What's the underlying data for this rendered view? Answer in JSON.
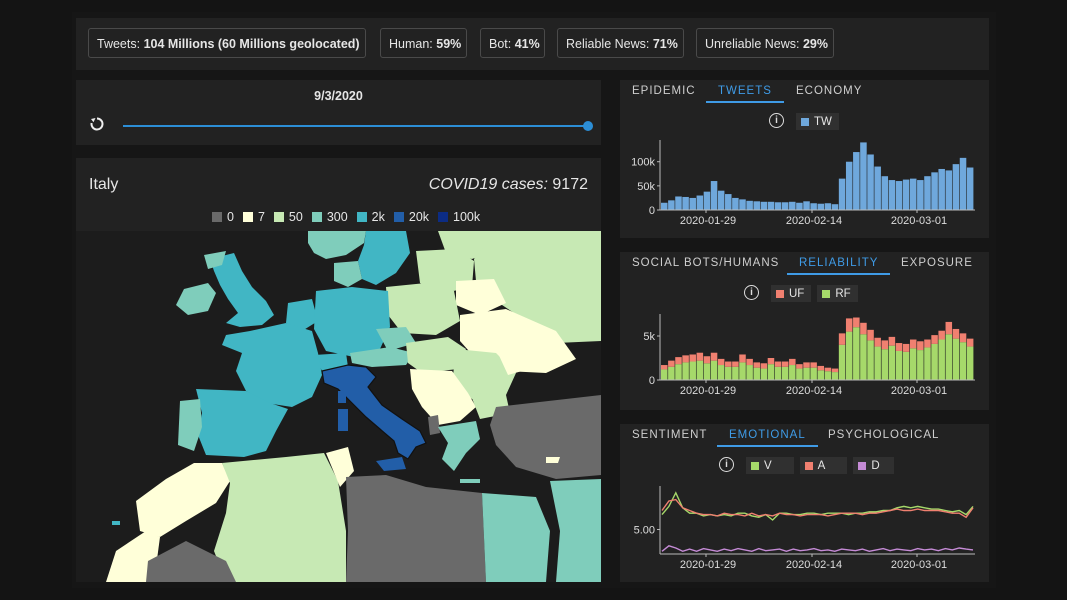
{
  "stats": {
    "tweets_label": "Tweets:",
    "tweets_value": "104 Millions (60 Millions geolocated)",
    "human_label": "Human:",
    "human_value": "59%",
    "bot_label": "Bot:",
    "bot_value": "41%",
    "reliable_label": "Reliable News:",
    "reliable_value": "71%",
    "unreliable_label": "Unreliable News:",
    "unreliable_value": "29%"
  },
  "slider": {
    "date": "9/3/2020",
    "progress": 1.0
  },
  "map": {
    "country": "Italy",
    "cases_label": "COVID19 cases:",
    "cases_value": "9172",
    "legend": [
      {
        "label": "0",
        "color": "#6a6a6a"
      },
      {
        "label": "7",
        "color": "#ffffd9"
      },
      {
        "label": "50",
        "color": "#c7e9b4"
      },
      {
        "label": "300",
        "color": "#7fcdbb"
      },
      {
        "label": "2k",
        "color": "#41b6c4"
      },
      {
        "label": "20k",
        "color": "#225ea8"
      },
      {
        "label": "100k",
        "color": "#0c2c84"
      }
    ]
  },
  "panel1": {
    "tabs": [
      "EPIDEMIC",
      "TWEETS",
      "ECONOMY"
    ],
    "active_tab": 1,
    "legend": [
      {
        "label": "TW",
        "color": "#6fa8dc"
      }
    ]
  },
  "panel2": {
    "tabs": [
      "SOCIAL BOTS/HUMANS",
      "RELIABILITY",
      "EXPOSURE"
    ],
    "active_tab": 1,
    "legend": [
      {
        "label": "UF",
        "color": "#f08070"
      },
      {
        "label": "RF",
        "color": "#a6d96a"
      }
    ]
  },
  "panel3": {
    "tabs": [
      "SENTIMENT",
      "EMOTIONAL",
      "PSYCHOLOGICAL"
    ],
    "active_tab": 1,
    "legend": [
      {
        "label": "V",
        "color": "#a6d96a"
      },
      {
        "label": "A",
        "color": "#f08070"
      },
      {
        "label": "D",
        "color": "#c58bd6"
      }
    ]
  },
  "chart_data": [
    {
      "type": "bar",
      "title": "",
      "series": [
        {
          "name": "TW",
          "values": [
            15000,
            20000,
            28000,
            27000,
            25000,
            30000,
            38000,
            60000,
            40000,
            33000,
            25000,
            22000,
            19000,
            18000,
            17000,
            17000,
            16000,
            16000,
            17000,
            15000,
            18000,
            14000,
            13000,
            14000,
            12000,
            65000,
            100000,
            120000,
            140000,
            115000,
            90000,
            70000,
            62000,
            60000,
            63000,
            65000,
            62000,
            70000,
            78000,
            85000,
            82000,
            95000,
            108000,
            88000
          ]
        }
      ],
      "x_ticks": [
        "2020-01-29",
        "2020-02-14",
        "2020-03-01"
      ],
      "y_ticks": [
        "0",
        "50k",
        "100k"
      ],
      "ylim": [
        0,
        145000
      ]
    },
    {
      "type": "bar",
      "title": "",
      "series": [
        {
          "name": "RF",
          "values": [
            1200,
            1500,
            1800,
            2000,
            2100,
            2200,
            1900,
            2200,
            1700,
            1500,
            1500,
            2000,
            1700,
            1400,
            1300,
            1800,
            1500,
            1500,
            1700,
            1300,
            1400,
            1400,
            1100,
            1000,
            900,
            4000,
            5500,
            6000,
            5200,
            4500,
            3800,
            3500,
            3900,
            3300,
            3200,
            3600,
            3400,
            3700,
            4100,
            4600,
            5200,
            4700,
            4300,
            3800
          ]
        },
        {
          "name": "UF",
          "values": [
            500,
            700,
            800,
            800,
            800,
            900,
            800,
            900,
            700,
            600,
            600,
            900,
            700,
            600,
            600,
            700,
            600,
            600,
            700,
            500,
            600,
            600,
            500,
            400,
            400,
            1300,
            1500,
            1100,
            1300,
            1200,
            1000,
            1000,
            1000,
            900,
            900,
            1000,
            1000,
            900,
            1000,
            1000,
            1400,
            1100,
            1000,
            900
          ]
        }
      ],
      "x_ticks": [
        "2020-01-29",
        "2020-02-14",
        "2020-03-01"
      ],
      "y_ticks": [
        "0",
        "5k"
      ],
      "ylim": [
        0,
        7500
      ]
    },
    {
      "type": "line",
      "title": "",
      "series": [
        {
          "name": "V",
          "values": [
            5.55,
            5.85,
            6.35,
            5.8,
            5.6,
            5.6,
            5.5,
            5.55,
            5.5,
            5.55,
            5.5,
            5.6,
            5.6,
            5.5,
            5.45,
            5.55,
            5.35,
            5.6,
            5.6,
            5.55,
            5.55,
            5.6,
            5.6,
            5.55,
            5.6,
            5.6,
            5.6,
            5.55,
            5.6,
            5.6,
            5.65,
            5.65,
            5.7,
            5.7,
            5.8,
            5.85,
            5.8,
            5.85,
            5.8,
            5.75,
            5.75,
            5.7,
            5.65,
            5.7,
            5.55,
            5.85
          ]
        },
        {
          "name": "A",
          "values": [
            5.7,
            6.05,
            6.1,
            5.8,
            5.7,
            5.6,
            5.55,
            5.55,
            5.5,
            5.6,
            5.55,
            5.55,
            5.5,
            5.6,
            5.5,
            5.55,
            5.5,
            5.6,
            5.55,
            5.55,
            5.5,
            5.55,
            5.55,
            5.55,
            5.5,
            5.55,
            5.6,
            5.6,
            5.6,
            5.55,
            5.6,
            5.6,
            5.65,
            5.7,
            5.75,
            5.7,
            5.7,
            5.75,
            5.7,
            5.7,
            5.7,
            5.65,
            5.6,
            5.6,
            5.45,
            5.8
          ]
        },
        {
          "name": "D",
          "values": [
            4.2,
            4.4,
            4.32,
            4.2,
            4.28,
            4.2,
            4.3,
            4.25,
            4.2,
            4.28,
            4.22,
            4.3,
            4.25,
            4.2,
            4.3,
            4.22,
            4.25,
            4.28,
            4.2,
            4.28,
            4.22,
            4.25,
            4.3,
            4.22,
            4.25,
            4.2,
            4.28,
            4.25,
            4.22,
            4.28,
            4.2,
            4.25,
            4.3,
            4.22,
            4.28,
            4.25,
            4.22,
            4.3,
            4.25,
            4.28,
            4.22,
            4.3,
            4.25,
            4.32,
            4.28,
            4.25
          ]
        }
      ],
      "x_ticks": [
        "2020-01-29",
        "2020-02-14",
        "2020-03-01"
      ],
      "y_ticks": [
        "5.00"
      ],
      "ylim": [
        4.1,
        6.6
      ]
    }
  ]
}
